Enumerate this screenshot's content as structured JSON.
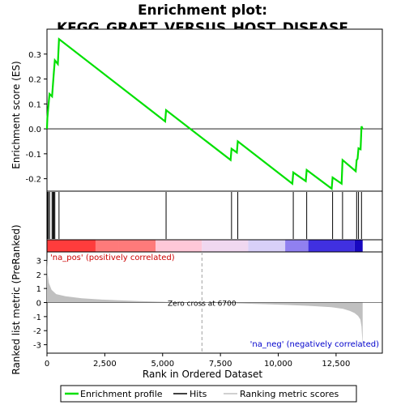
{
  "chart_data": {
    "type": "line",
    "title": "Enrichment plot:\nKEGG_GRAFT_VERSUS_HOST_DISEASE",
    "title_lines": [
      "Enrichment plot:",
      "KEGG_GRAFT_VERSUS_HOST_DISEASE"
    ],
    "xlabel": "Rank in Ordered Dataset",
    "top_ylabel": "Enrichment score (ES)",
    "bottom_ylabel": "Ranked list metric (PreRanked)",
    "xlim": [
      0,
      14500
    ],
    "es_ylim": [
      -0.25,
      0.4
    ],
    "metric_ylim": [
      -3.6,
      3.6
    ],
    "x_ticks": [
      0,
      2500,
      5000,
      7500,
      10000,
      12500
    ],
    "x_tick_labels": [
      "0",
      "2,500",
      "5,000",
      "7,500",
      "10,000",
      "12,500"
    ],
    "es_ticks": [
      -0.2,
      -0.1,
      0.0,
      0.1,
      0.2,
      0.3
    ],
    "es_tick_labels": [
      "-0.2",
      "-0.1",
      "0.0",
      "0.1",
      "0.2",
      "0.3"
    ],
    "metric_ticks": [
      -3,
      -2,
      -1,
      0,
      1,
      2,
      3
    ],
    "metric_tick_labels": [
      "-3",
      "-2",
      "-1",
      "0",
      "1",
      "2",
      "3"
    ],
    "n_genes": 13650,
    "hits": [
      18,
      60,
      110,
      220,
      260,
      300,
      340,
      520,
      5150,
      7980,
      8250,
      10650,
      11230,
      12350,
      12780,
      13390,
      13470,
      13600
    ],
    "enrichment_profile": {
      "x": [
        0,
        18,
        60,
        110,
        220,
        260,
        300,
        340,
        470,
        520,
        5110,
        5150,
        7940,
        7980,
        8210,
        8250,
        10610,
        10650,
        11190,
        11230,
        12310,
        12350,
        12740,
        12780,
        13350,
        13390,
        13430,
        13470,
        13560,
        13600,
        13650
      ],
      "y": [
        0.0,
        0.045,
        0.09,
        0.14,
        0.13,
        0.18,
        0.23,
        0.275,
        0.26,
        0.36,
        0.03,
        0.075,
        -0.125,
        -0.08,
        -0.095,
        -0.05,
        -0.22,
        -0.175,
        -0.21,
        -0.165,
        -0.24,
        -0.195,
        -0.22,
        -0.125,
        -0.17,
        -0.125,
        -0.12,
        -0.078,
        -0.082,
        0.01,
        0.0
      ]
    },
    "ranking_metric": {
      "x": [
        0,
        30,
        80,
        200,
        400,
        800,
        1500,
        2500,
        4000,
        5500,
        6700,
        8000,
        9500,
        10500,
        11500,
        12300,
        12800,
        13100,
        13300,
        13450,
        13550,
        13600,
        13640,
        13650
      ],
      "y": [
        3.2,
        2.0,
        1.4,
        0.9,
        0.6,
        0.45,
        0.3,
        0.2,
        0.1,
        0.03,
        0.0,
        -0.05,
        -0.12,
        -0.18,
        -0.25,
        -0.33,
        -0.45,
        -0.6,
        -0.75,
        -0.95,
        -1.2,
        -1.7,
        -2.8,
        -3.4
      ]
    },
    "zero_cross_rank": 6700,
    "zero_cross_label": "Zero cross at 6700",
    "pos_label": "'na_pos' (positively correlated)",
    "neg_label": "'na_neg' (negatively correlated)",
    "legend": [
      "Enrichment profile",
      "Hits",
      "Ranking metric scores"
    ],
    "legend_placement": "bottom",
    "colors": {
      "enrichment_line": "#00e000",
      "hit_line": "#000000",
      "metric_fill": "#c0c0c0",
      "zero_line": "#a0a0a0",
      "pos_label": "#cc0000",
      "neg_label": "#0000cc",
      "heat_pos_strong": "#ff3c3c",
      "heat_pos_mid": "#ff7a7a",
      "heat_pos_light": "#ffc8d8",
      "heat_neutral": "#f0d8f0",
      "heat_neg_light": "#d8d0f8",
      "heat_neg_mid": "#9080f0",
      "heat_neg_strong": "#4030e0",
      "heat_neg_deep": "#1808c0"
    },
    "heat_segments": [
      {
        "from": 0,
        "to": 2100,
        "color": "heat_pos_strong"
      },
      {
        "from": 2100,
        "to": 3100,
        "color": "heat_pos_mid"
      },
      {
        "from": 3100,
        "to": 4700,
        "color": "heat_pos_mid"
      },
      {
        "from": 4700,
        "to": 6700,
        "color": "heat_pos_light"
      },
      {
        "from": 6700,
        "to": 8700,
        "color": "heat_neutral"
      },
      {
        "from": 8700,
        "to": 10300,
        "color": "heat_neg_light"
      },
      {
        "from": 10300,
        "to": 11300,
        "color": "heat_neg_mid"
      },
      {
        "from": 11300,
        "to": 13300,
        "color": "heat_neg_strong"
      },
      {
        "from": 13300,
        "to": 13650,
        "color": "heat_neg_deep"
      }
    ]
  }
}
